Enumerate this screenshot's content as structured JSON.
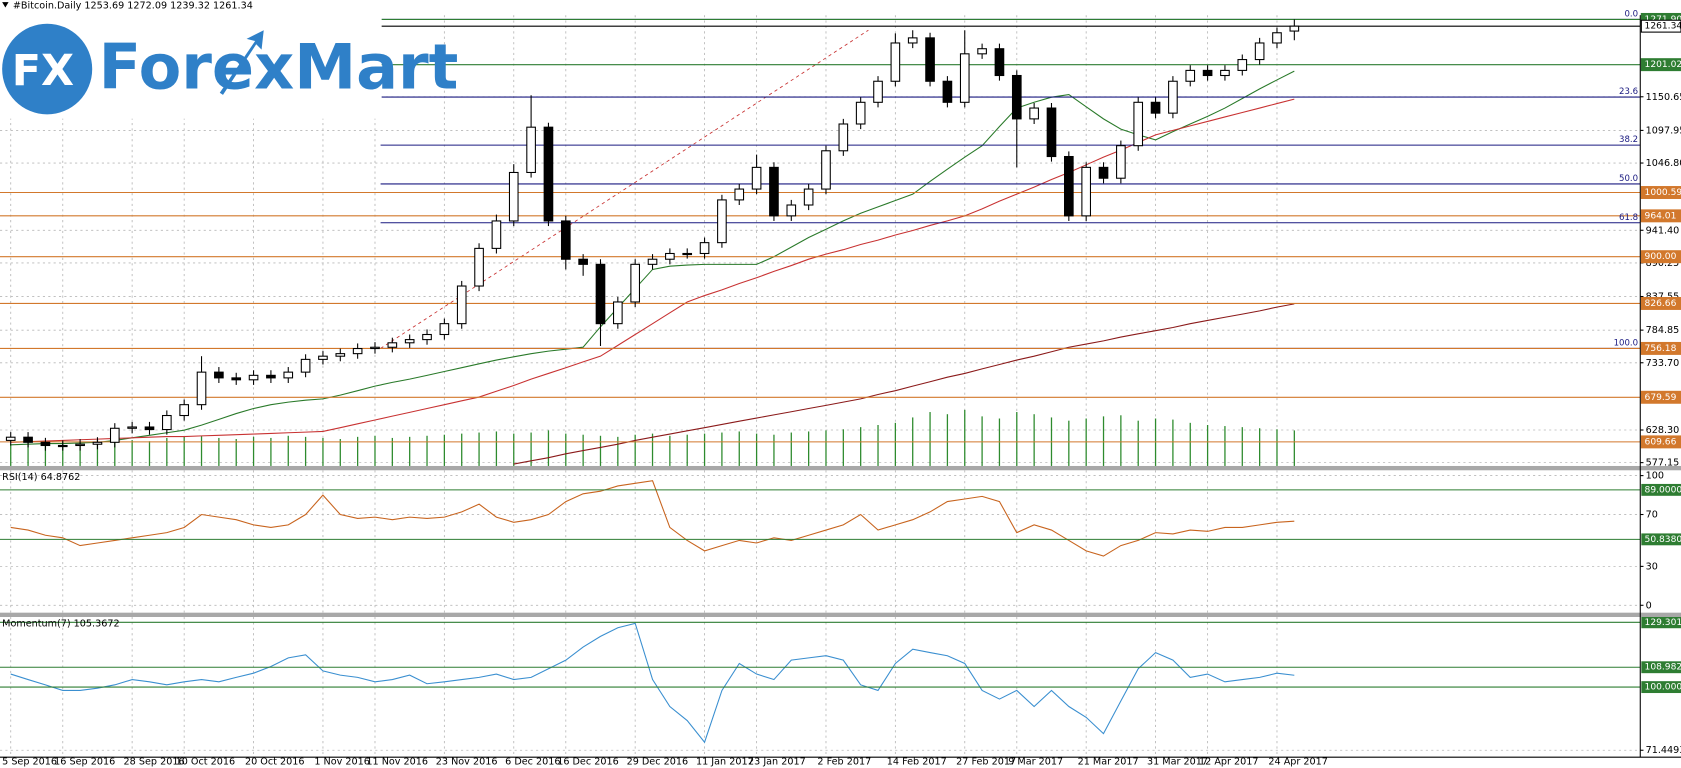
{
  "logo": {
    "mark": "FX",
    "name": "ForexMart"
  },
  "chart_data": [
    {
      "type": "candlestick",
      "title": "#Bitcoin.Daily  1253.69 1272.09 1239.32 1261.34",
      "categories": [
        "5 Sep 2016",
        null,
        null,
        "16 Sep 2016",
        null,
        null,
        null,
        "28 Sep 2016",
        null,
        null,
        "10 Oct 2016",
        null,
        null,
        null,
        "20 Oct 2016",
        null,
        null,
        null,
        "1 Nov 2016",
        null,
        null,
        "11 Nov 2016",
        null,
        null,
        null,
        "23 Nov 2016",
        null,
        null,
        null,
        "6 Dec 2016",
        null,
        null,
        "16 Dec 2016",
        null,
        null,
        null,
        "29 Dec 2016",
        null,
        null,
        null,
        "11 Jan 2017",
        null,
        null,
        "23 Jan 2017",
        null,
        null,
        null,
        "2 Feb 2017",
        null,
        null,
        null,
        "14 Feb 2017",
        null,
        null,
        null,
        "27 Feb 2017",
        null,
        null,
        "9 Mar 2017",
        null,
        null,
        null,
        "21 Mar 2017",
        null,
        null,
        null,
        "31 Mar 2017",
        null,
        null,
        "12 Apr 2017",
        null,
        null,
        null,
        "24 Apr 2017",
        null
      ],
      "open": [
        612,
        617,
        609,
        604,
        604,
        606,
        609,
        631,
        633,
        629,
        651,
        668,
        719,
        710,
        707,
        714,
        710,
        719,
        739,
        744,
        748,
        756,
        758,
        765,
        770,
        778,
        795,
        854,
        913,
        956,
        1032,
        1103,
        956,
        896,
        888,
        795,
        829,
        888,
        896,
        905,
        905,
        922,
        989,
        1006,
        1040,
        964,
        981,
        1006,
        1066,
        1108,
        1142,
        1175,
        1235,
        1243,
        1175,
        1142,
        1218,
        1226,
        1184,
        1116,
        1133,
        1057,
        964,
        1040,
        1023,
        1074,
        1142,
        1125,
        1175,
        1192,
        1184,
        1192,
        1209,
        1235,
        1253.69
      ],
      "high": [
        625,
        625,
        616,
        612,
        614,
        617,
        639,
        641,
        641,
        659,
        676,
        744,
        727,
        718,
        722,
        722,
        727,
        747,
        752,
        756,
        764,
        766,
        773,
        778,
        786,
        803,
        862,
        921,
        966,
        1045,
        1153,
        1110,
        964,
        904,
        896,
        837,
        896,
        904,
        913,
        913,
        930,
        997,
        1014,
        1060,
        1048,
        989,
        1014,
        1074,
        1116,
        1150,
        1183,
        1250,
        1255,
        1251,
        1183,
        1255,
        1234,
        1234,
        1192,
        1141,
        1141,
        1065,
        1048,
        1048,
        1082,
        1150,
        1150,
        1183,
        1200,
        1200,
        1200,
        1217,
        1243,
        1259,
        1272.09
      ],
      "low": [
        604,
        601,
        596,
        596,
        596,
        598,
        601,
        623,
        621,
        621,
        643,
        660,
        702,
        699,
        699,
        702,
        702,
        711,
        731,
        736,
        740,
        748,
        750,
        757,
        762,
        770,
        787,
        846,
        905,
        948,
        1024,
        948,
        880,
        870,
        760,
        787,
        821,
        880,
        888,
        897,
        897,
        914,
        981,
        998,
        956,
        956,
        973,
        998,
        1058,
        1100,
        1134,
        1167,
        1227,
        1167,
        1134,
        1134,
        1210,
        1176,
        1040,
        1108,
        1049,
        956,
        956,
        1015,
        1015,
        1066,
        1117,
        1117,
        1167,
        1176,
        1176,
        1184,
        1201,
        1227,
        1239.32
      ],
      "close": [
        617,
        609,
        604,
        604,
        606,
        609,
        631,
        633,
        629,
        651,
        668,
        719,
        710,
        707,
        714,
        710,
        719,
        739,
        744,
        748,
        756,
        758,
        765,
        770,
        778,
        795,
        854,
        913,
        956,
        1032,
        1103,
        956,
        896,
        888,
        795,
        829,
        888,
        896,
        905,
        905,
        922,
        989,
        1006,
        1040,
        964,
        981,
        1006,
        1066,
        1108,
        1142,
        1175,
        1235,
        1243,
        1175,
        1142,
        1218,
        1226,
        1184,
        1116,
        1133,
        1057,
        964,
        1040,
        1023,
        1074,
        1142,
        1125,
        1175,
        1192,
        1184,
        1192,
        1209,
        1235,
        1251,
        1261.34
      ],
      "colors": {
        "up": "#ffffff",
        "down": "#000000",
        "outline": "#000000"
      },
      "volume": {
        "color": "#2e8b2e",
        "values": [
          20,
          22,
          21,
          23,
          22,
          24,
          25,
          24,
          23,
          26,
          27,
          28,
          26,
          25,
          27,
          26,
          28,
          27,
          26,
          25,
          27,
          28,
          26,
          27,
          28,
          29,
          30,
          31,
          32,
          30,
          31,
          33,
          30,
          29,
          28,
          27,
          29,
          30,
          28,
          29,
          30,
          31,
          32,
          30,
          29,
          31,
          32,
          33,
          34,
          36,
          38,
          40,
          45,
          50,
          48,
          52,
          46,
          44,
          50,
          48,
          45,
          42,
          44,
          46,
          47,
          42,
          44,
          43,
          40,
          38,
          37,
          36,
          35,
          34,
          33
        ]
      },
      "overlays": [
        {
          "color": "#2a7a2a",
          "values": [
            605,
            606,
            607,
            607,
            608,
            609,
            612,
            616,
            620,
            624,
            628,
            636,
            645,
            654,
            662,
            668,
            672,
            675,
            677,
            683,
            690,
            697,
            703,
            708,
            714,
            720,
            726,
            732,
            738,
            743,
            748,
            752,
            755,
            758,
            790,
            820,
            850,
            880,
            885,
            887,
            888,
            888,
            888,
            888,
            900,
            915,
            930,
            943,
            956,
            968,
            978,
            988,
            998,
            1018,
            1037,
            1056,
            1074,
            1104,
            1133,
            1142,
            1150,
            1154,
            1135,
            1116,
            1100,
            1091,
            1083,
            1096,
            1108,
            1120,
            1133,
            1148,
            1163,
            1177,
            1191
          ]
        },
        {
          "color": "#c83232",
          "values": [
            609,
            610,
            611,
            612,
            613,
            614,
            615,
            616,
            617,
            618,
            618,
            619,
            620,
            621,
            622,
            623,
            624,
            625,
            626,
            632,
            638,
            644,
            650,
            656,
            662,
            668,
            674,
            680,
            689,
            698,
            708,
            717,
            726,
            735,
            744,
            761,
            778,
            795,
            812,
            829,
            839,
            848,
            858,
            867,
            877,
            886,
            896,
            904,
            911,
            919,
            926,
            934,
            941,
            949,
            956,
            964,
            975,
            987,
            998,
            1009,
            1021,
            1032,
            1044,
            1056,
            1067,
            1079,
            1091,
            1098,
            1105,
            1112,
            1119,
            1126,
            1133,
            1140,
            1147
          ]
        },
        {
          "color": "#8b1a1a",
          "values": [
            null,
            null,
            null,
            null,
            null,
            null,
            null,
            null,
            null,
            null,
            null,
            null,
            null,
            null,
            null,
            null,
            null,
            null,
            null,
            null,
            null,
            null,
            null,
            null,
            null,
            null,
            null,
            null,
            null,
            575,
            580,
            585,
            591,
            596,
            601,
            606,
            612,
            617,
            622,
            627,
            632,
            637,
            642,
            647,
            652,
            657,
            662,
            667,
            672,
            677,
            684,
            690,
            697,
            704,
            711,
            717,
            724,
            731,
            738,
            744,
            751,
            758,
            763,
            768,
            774,
            779,
            784,
            789,
            795,
            800,
            805,
            810,
            815,
            821,
            826
          ]
        }
      ],
      "ylim": [
        571.9,
        1278.7
      ],
      "yticks": [
        1150.65,
        1097.95,
        {
          "value": 1046.8,
          "label": "1046.80"
        },
        {
          "value": 941.4,
          "label": "941.40"
        },
        890.25,
        837.55,
        784.85,
        {
          "value": 733.7,
          "label": "733.70"
        },
        {
          "value": 628.3,
          "label": "628.30"
        },
        577.15
      ],
      "grid": true,
      "levels": [
        {
          "value": 1271.9,
          "label": "1271.90",
          "color": "#2e7d32"
        },
        {
          "value": 1261.34,
          "color": "#000000"
        },
        {
          "value": 1201.02,
          "color": "#2e7d32"
        },
        {
          "value": 1000.59,
          "color": "#d2782c"
        },
        {
          "value": 964.01,
          "color": "#d2782c"
        },
        {
          "value": 900,
          "label": "900.00",
          "color": "#d2782c"
        },
        {
          "value": 826.66,
          "color": "#d2782c"
        },
        {
          "value": 756.18,
          "color": "#d2782c"
        },
        {
          "value": 679.59,
          "color": "#d2782c"
        },
        {
          "value": 609.66,
          "color": "#d2782c"
        }
      ],
      "fibonacci": {
        "high": 1271.9,
        "low": 756.18,
        "color": "#1a1a80",
        "levels": [
          {
            "value": 0,
            "label": "0.0"
          },
          23.6,
          38.2,
          {
            "value": 50,
            "label": "50.0"
          },
          61.8,
          {
            "value": 100,
            "label": "100.0"
          }
        ]
      }
    },
    {
      "type": "line",
      "title": "RSI(14) 64.8762",
      "color": "#c8641e",
      "values": [
        60,
        58,
        54,
        52,
        46,
        48,
        50,
        52,
        54,
        56,
        60,
        70,
        68,
        66,
        62,
        60,
        62,
        70,
        85,
        70,
        67,
        68,
        66,
        68,
        67,
        68,
        72,
        78,
        68,
        64,
        66,
        70,
        80,
        86,
        88,
        92,
        94,
        96,
        60,
        50,
        42,
        46,
        50,
        48,
        52,
        50,
        54,
        58,
        62,
        70,
        58,
        62,
        66,
        72,
        80,
        82,
        84,
        80,
        56,
        62,
        58,
        50,
        42,
        38,
        46,
        50,
        56,
        55,
        58,
        57,
        60,
        60,
        62,
        64,
        64.8762
      ],
      "ylim": [
        -5.7,
        104.1
      ],
      "yticks": [
        100,
        70,
        30,
        0
      ],
      "levels": [
        {
          "value": 89,
          "label": "89.0000"
        },
        {
          "value": 50.838,
          "label": "50.8380"
        }
      ],
      "level_color": "#2e7d32"
    },
    {
      "type": "line",
      "title": "Momentum(7) 105.3672",
      "color": "#3a8fd0",
      "values": [
        105.9,
        103.4,
        101,
        98.5,
        98.5,
        99.5,
        101,
        103.4,
        102.4,
        101,
        102.4,
        103.4,
        102.4,
        104.4,
        106.3,
        109.3,
        113.2,
        114.6,
        107.3,
        105.4,
        104.4,
        102.4,
        103.4,
        105.4,
        101.5,
        102.4,
        103.4,
        104.4,
        105.9,
        103.4,
        104.4,
        108.3,
        112.2,
        118.1,
        122.9,
        126.8,
        128.8,
        103.4,
        91.2,
        84.9,
        75.1,
        98.5,
        110.7,
        105.9,
        103.4,
        112.2,
        113.2,
        114.2,
        112.2,
        101,
        98.5,
        110.7,
        117.1,
        115.6,
        114.2,
        110.7,
        98.5,
        94.6,
        98.5,
        91.2,
        98.5,
        91.2,
        86.3,
        79,
        93.7,
        108.3,
        115.6,
        112.2,
        104.4,
        105.9,
        102.4,
        103.4,
        104.4,
        106.3,
        105.3672
      ],
      "ylim": [
        68.3,
        131.7
      ],
      "yticks": [
        71.4493
      ],
      "levels": [
        129.301,
        108.982,
        {
          "value": 100,
          "label": "100.000"
        }
      ],
      "level_color": "#2e7d32"
    }
  ]
}
